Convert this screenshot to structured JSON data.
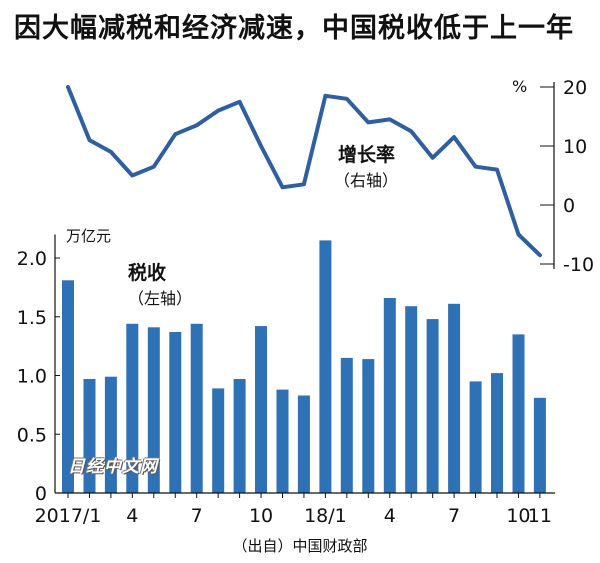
{
  "title": "因大幅减税和经济减速，中国税收低于上一年",
  "source": "（出自）中国财政部",
  "watermark": "日经中文网",
  "colors": {
    "bar": "#2f71b5",
    "line": "#2f5fa0",
    "axis": "#111111"
  },
  "chart_data": {
    "type": "bar+line",
    "categories": [
      "2017/1",
      "2",
      "3",
      "4",
      "5",
      "6",
      "7",
      "8",
      "9",
      "10",
      "11",
      "12",
      "18/1",
      "2",
      "3",
      "4",
      "5",
      "6",
      "7",
      "8",
      "9",
      "10",
      "11"
    ],
    "tick_labels": [
      "2017/1",
      "",
      "",
      "4",
      "",
      "",
      "7",
      "",
      "",
      "10",
      "",
      "",
      "18/1",
      "",
      "",
      "4",
      "",
      "",
      "7",
      "",
      "",
      "10",
      "11"
    ],
    "series": [
      {
        "name": "税收",
        "axis_label": "（左轴）",
        "type": "bar",
        "unit": "万亿元",
        "values": [
          1.81,
          0.97,
          0.99,
          1.44,
          1.41,
          1.37,
          1.44,
          0.89,
          0.97,
          1.42,
          0.88,
          0.83,
          2.15,
          1.15,
          1.14,
          1.66,
          1.59,
          1.48,
          1.61,
          0.95,
          1.02,
          1.35,
          0.81
        ]
      },
      {
        "name": "增长率",
        "axis_label": "（右轴）",
        "type": "line",
        "unit": "%",
        "values": [
          20,
          11,
          9,
          5,
          6.5,
          12,
          13.5,
          16,
          17.5,
          10,
          3,
          3.5,
          18.5,
          18,
          14,
          14.5,
          12.5,
          8,
          11.5,
          6.5,
          6,
          -5,
          -8.5
        ]
      }
    ],
    "left_axis": {
      "unit": "万亿元",
      "ticks": [
        0,
        0.5,
        1.0,
        1.5,
        2.0
      ],
      "tick_labels": [
        "0",
        "0.5",
        "1.0",
        "1.5",
        "2.0"
      ],
      "ylim": [
        0,
        2.2
      ]
    },
    "right_axis": {
      "unit": "%",
      "ticks": [
        -10,
        0,
        10,
        20
      ],
      "tick_labels": [
        "-10",
        "0",
        "10",
        "20"
      ],
      "ylim": [
        -10,
        20
      ]
    }
  }
}
